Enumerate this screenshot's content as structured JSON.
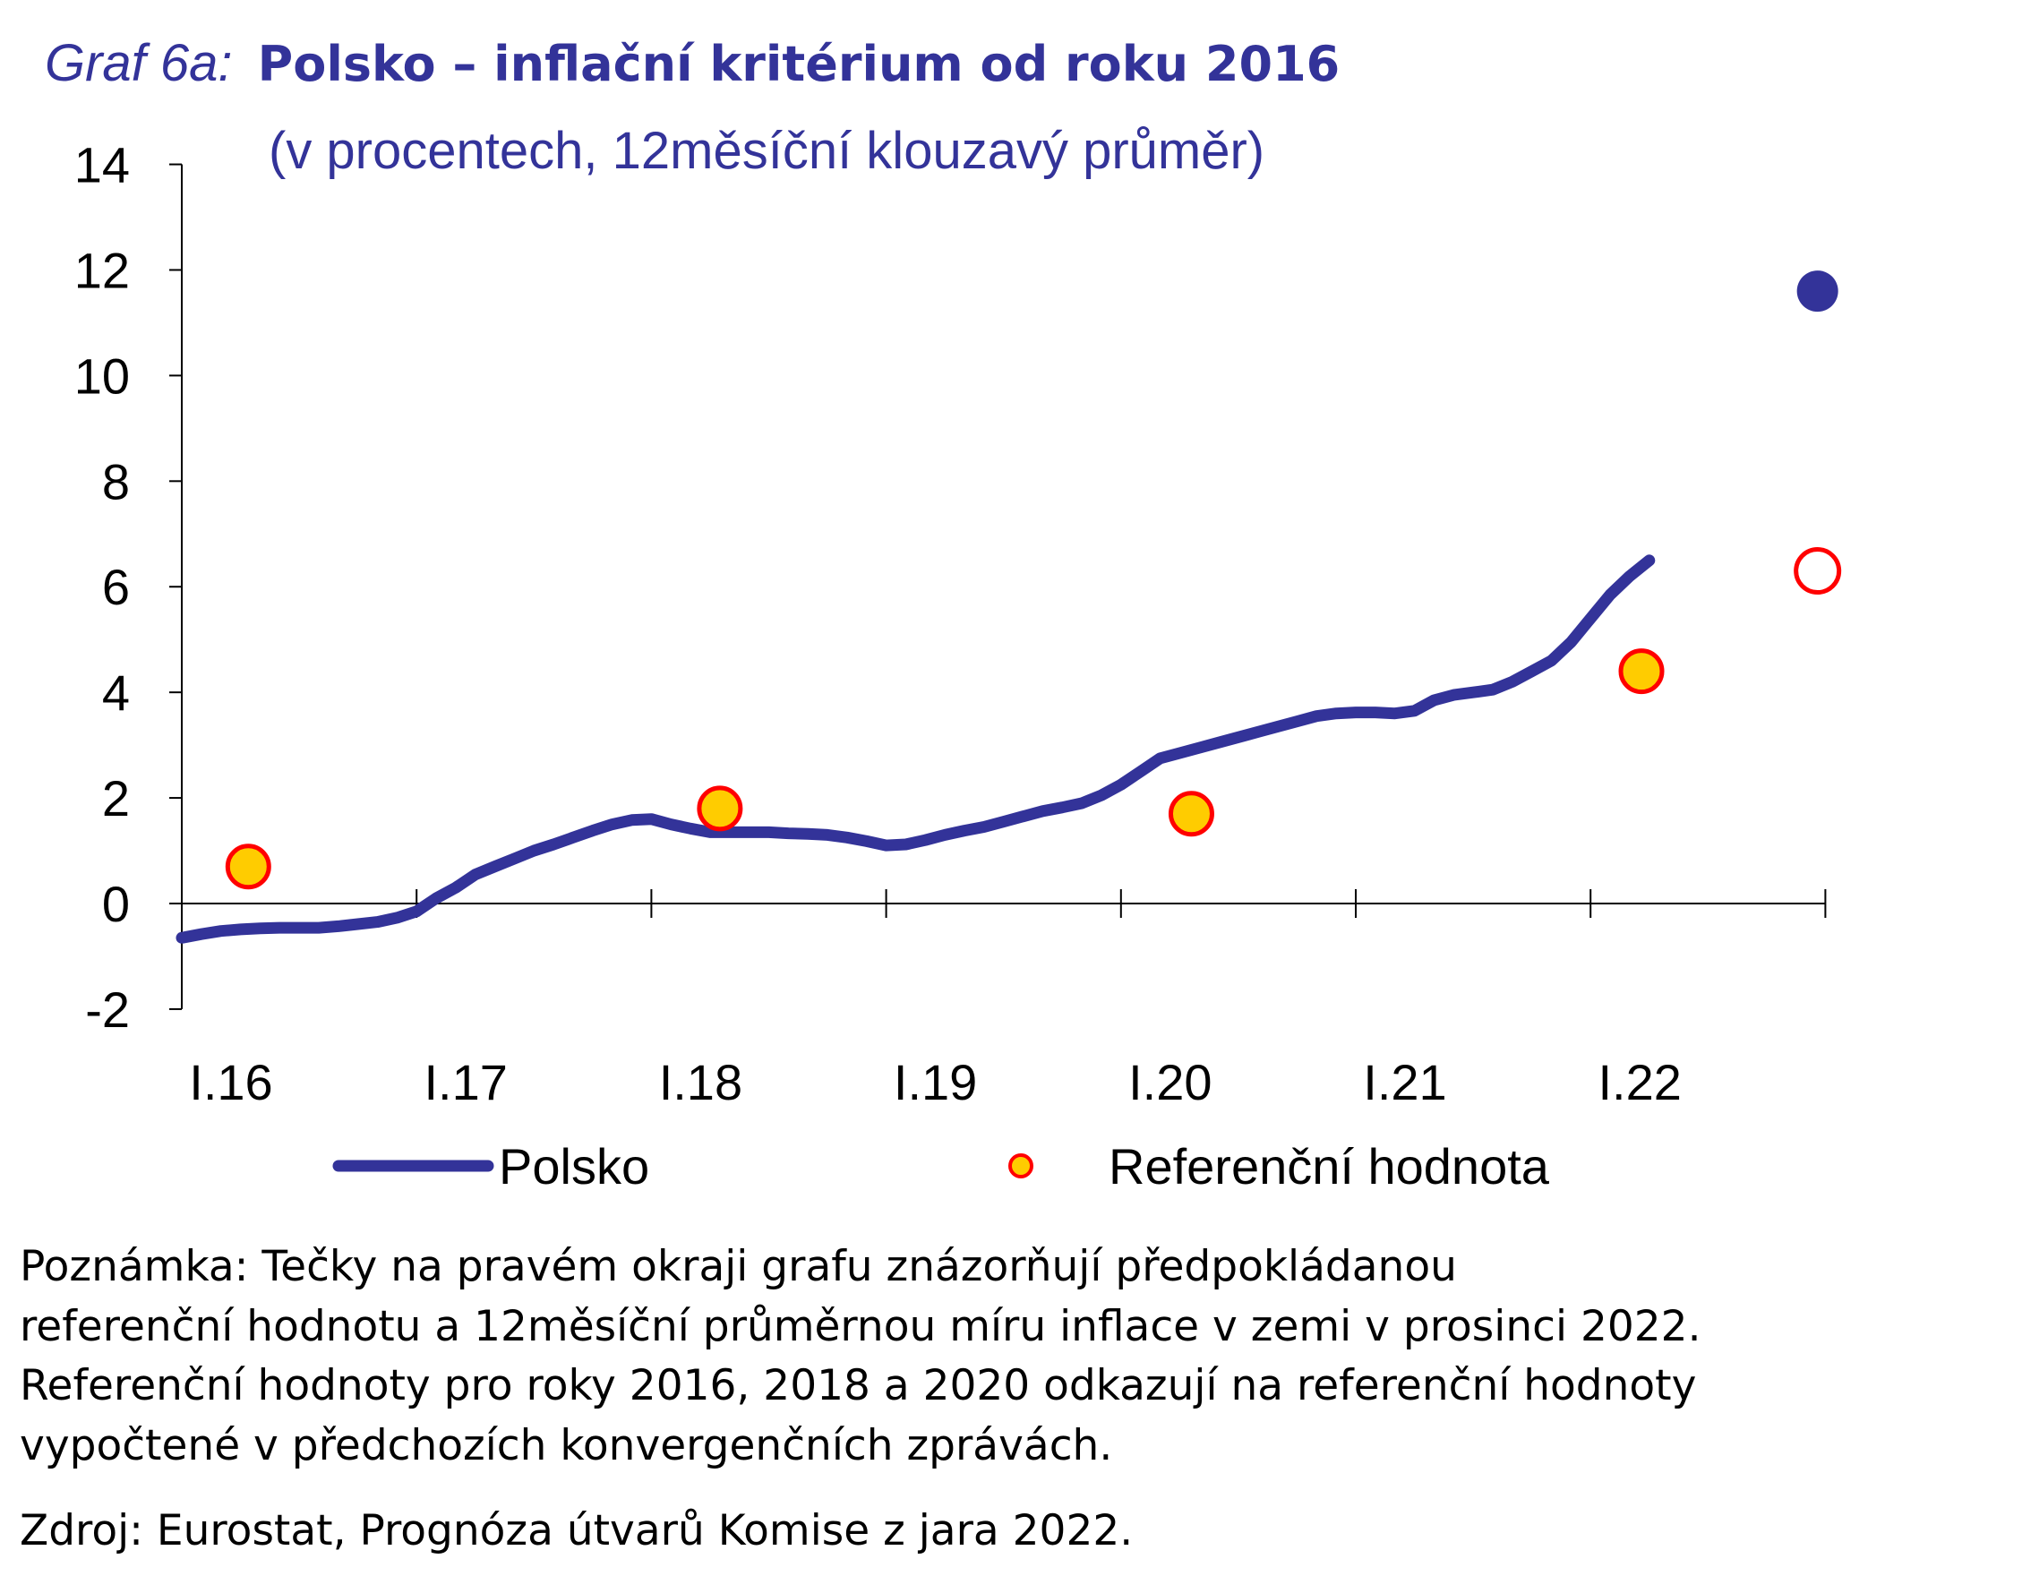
{
  "colors": {
    "line": "#333399",
    "ref_fill": "#ffcc00",
    "ref_stroke": "#ff0000",
    "text": "#333399"
  },
  "chart_data": {
    "type": "line",
    "title_prefix": "Graf 6a:",
    "title": "Polsko – inflační kritérium od roku 2016",
    "subtitle": "(v procentech, 12měsíční klouzavý průměr)",
    "xlabel": "",
    "ylabel": "",
    "ylim": [
      -2,
      14
    ],
    "yticks": [
      "14",
      "12",
      "10",
      "8",
      "6",
      "4",
      "2",
      "0",
      "-2"
    ],
    "ytick_values": [
      14,
      12,
      10,
      8,
      6,
      4,
      2,
      0,
      -2
    ],
    "xticks": [
      "I.16",
      "I.17",
      "I.18",
      "I.19",
      "I.20",
      "I.21",
      "I.22"
    ],
    "x_unit": "months since Jan 2016",
    "xlim": [
      0,
      84
    ],
    "series": [
      {
        "name": "Polsko",
        "type": "line",
        "x_start_month": 0,
        "values": [
          -0.65,
          -0.58,
          -0.52,
          -0.49,
          -0.47,
          -0.46,
          -0.46,
          -0.46,
          -0.43,
          -0.39,
          -0.35,
          -0.27,
          -0.15,
          0.1,
          0.3,
          0.55,
          0.7,
          0.85,
          1.0,
          1.12,
          1.25,
          1.38,
          1.5,
          1.58,
          1.6,
          1.5,
          1.42,
          1.35,
          1.35,
          1.35,
          1.35,
          1.33,
          1.32,
          1.3,
          1.25,
          1.18,
          1.1,
          1.12,
          1.2,
          1.3,
          1.38,
          1.45,
          1.55,
          1.65,
          1.75,
          1.82,
          1.9,
          2.05,
          2.25,
          2.5,
          2.75,
          2.85,
          2.95,
          3.05,
          3.15,
          3.25,
          3.35,
          3.45,
          3.55,
          3.6,
          3.62,
          3.62,
          3.6,
          3.65,
          3.85,
          3.95,
          4.0,
          4.05,
          4.2,
          4.4,
          4.6,
          4.95,
          5.4,
          5.85,
          6.2,
          6.5
        ]
      },
      {
        "name": "Referenční hodnota",
        "type": "scatter",
        "points": [
          {
            "month": 3.4,
            "value": 0.7
          },
          {
            "month": 27.5,
            "value": 1.8
          },
          {
            "month": 51.6,
            "value": 1.7
          },
          {
            "month": 74.6,
            "value": 4.4
          }
        ]
      }
    ],
    "projections": [
      {
        "series": "Polsko",
        "month": 83.6,
        "value": 11.6,
        "label": "December 2022 forecast"
      },
      {
        "series": "Referenční hodnota",
        "month": 83.6,
        "value": 6.3,
        "label": "December 2022 forecast"
      }
    ],
    "legend": [
      "Polsko",
      "Referenční hodnota"
    ],
    "legend_position": "bottom",
    "grid": false
  },
  "notes": {
    "lines": [
      "Poznámka: Tečky na pravém okraji grafu znázorňují předpokládanou",
      "referenční hodnotu a 12měsíční průměrnou míru inflace v zemi v prosinci 2022.",
      "Referenční hodnoty pro roky 2016, 2018 a 2020 odkazují na referenční hodnoty",
      "vypočtené v předchozích konvergenčních zprávách."
    ],
    "source": "Zdroj: Eurostat, Prognóza útvarů Komise z jara 2022."
  }
}
